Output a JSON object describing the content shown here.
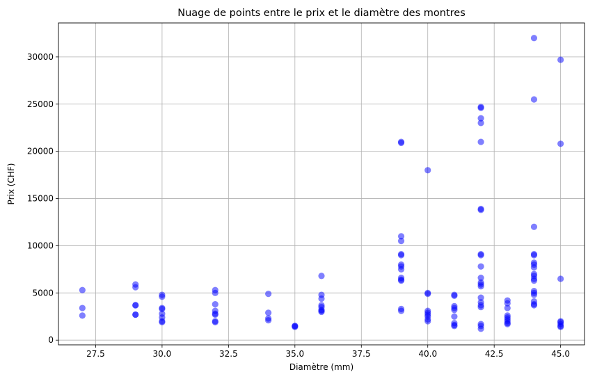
{
  "chart_data": {
    "type": "scatter",
    "title": "Nuage de points entre le prix et le diamètre des montres",
    "xlabel": "Diamètre (mm)",
    "ylabel": "Prix (CHF)",
    "xlim": [
      26.1,
      45.9
    ],
    "ylim": [
      -500,
      33600
    ],
    "xticks": [
      27.5,
      30.0,
      32.5,
      35.0,
      37.5,
      40.0,
      42.5,
      45.0
    ],
    "xtick_labels": [
      "27.5",
      "30.0",
      "32.5",
      "35.0",
      "37.5",
      "40.0",
      "42.5",
      "45.0"
    ],
    "yticks": [
      0,
      5000,
      10000,
      15000,
      20000,
      25000,
      30000
    ],
    "ytick_labels": [
      "0",
      "5000",
      "10000",
      "15000",
      "20000",
      "25000",
      "30000"
    ],
    "grid": true,
    "marker_color": "#0000ff",
    "marker_alpha": 0.5,
    "points": [
      {
        "x": 27,
        "y": 5300
      },
      {
        "x": 27,
        "y": 3400
      },
      {
        "x": 27,
        "y": 2600
      },
      {
        "x": 29,
        "y": 5900
      },
      {
        "x": 29,
        "y": 5600
      },
      {
        "x": 29,
        "y": 3700
      },
      {
        "x": 29,
        "y": 3700
      },
      {
        "x": 29,
        "y": 2700
      },
      {
        "x": 29,
        "y": 2700
      },
      {
        "x": 30,
        "y": 4800
      },
      {
        "x": 30,
        "y": 4600
      },
      {
        "x": 30,
        "y": 3400
      },
      {
        "x": 30,
        "y": 3300
      },
      {
        "x": 30,
        "y": 2800
      },
      {
        "x": 30,
        "y": 2400
      },
      {
        "x": 30,
        "y": 2000
      },
      {
        "x": 30,
        "y": 1900
      },
      {
        "x": 32,
        "y": 5300
      },
      {
        "x": 32,
        "y": 5000
      },
      {
        "x": 32,
        "y": 3800
      },
      {
        "x": 32,
        "y": 3100
      },
      {
        "x": 32,
        "y": 2800
      },
      {
        "x": 32,
        "y": 2700
      },
      {
        "x": 32,
        "y": 2000
      },
      {
        "x": 32,
        "y": 1900
      },
      {
        "x": 34,
        "y": 4900
      },
      {
        "x": 34,
        "y": 2900
      },
      {
        "x": 34,
        "y": 2300
      },
      {
        "x": 34,
        "y": 2100
      },
      {
        "x": 35,
        "y": 1500
      },
      {
        "x": 35,
        "y": 1500
      },
      {
        "x": 35,
        "y": 1400
      },
      {
        "x": 36,
        "y": 6800
      },
      {
        "x": 36,
        "y": 4800
      },
      {
        "x": 36,
        "y": 4400
      },
      {
        "x": 36,
        "y": 3700
      },
      {
        "x": 36,
        "y": 3500
      },
      {
        "x": 36,
        "y": 3200
      },
      {
        "x": 36,
        "y": 3100
      },
      {
        "x": 36,
        "y": 3000
      },
      {
        "x": 39,
        "y": 21000
      },
      {
        "x": 39,
        "y": 20900
      },
      {
        "x": 39,
        "y": 11000
      },
      {
        "x": 39,
        "y": 10500
      },
      {
        "x": 39,
        "y": 9100
      },
      {
        "x": 39,
        "y": 9000
      },
      {
        "x": 39,
        "y": 8000
      },
      {
        "x": 39,
        "y": 7800
      },
      {
        "x": 39,
        "y": 7500
      },
      {
        "x": 39,
        "y": 6600
      },
      {
        "x": 39,
        "y": 6400
      },
      {
        "x": 39,
        "y": 6300
      },
      {
        "x": 39,
        "y": 3300
      },
      {
        "x": 39,
        "y": 3100
      },
      {
        "x": 40,
        "y": 18000
      },
      {
        "x": 40,
        "y": 5000
      },
      {
        "x": 40,
        "y": 4900
      },
      {
        "x": 40,
        "y": 3100
      },
      {
        "x": 40,
        "y": 2900
      },
      {
        "x": 40,
        "y": 2700
      },
      {
        "x": 40,
        "y": 2500
      },
      {
        "x": 40,
        "y": 2200
      },
      {
        "x": 40,
        "y": 2000
      },
      {
        "x": 41,
        "y": 4800
      },
      {
        "x": 41,
        "y": 4700
      },
      {
        "x": 41,
        "y": 3600
      },
      {
        "x": 41,
        "y": 3400
      },
      {
        "x": 41,
        "y": 3200
      },
      {
        "x": 41,
        "y": 2500
      },
      {
        "x": 41,
        "y": 1800
      },
      {
        "x": 41,
        "y": 1600
      },
      {
        "x": 41,
        "y": 1500
      },
      {
        "x": 42,
        "y": 24700
      },
      {
        "x": 42,
        "y": 24600
      },
      {
        "x": 42,
        "y": 23500
      },
      {
        "x": 42,
        "y": 23000
      },
      {
        "x": 42,
        "y": 21000
      },
      {
        "x": 42,
        "y": 13900
      },
      {
        "x": 42,
        "y": 13800
      },
      {
        "x": 42,
        "y": 9100
      },
      {
        "x": 42,
        "y": 9000
      },
      {
        "x": 42,
        "y": 7800
      },
      {
        "x": 42,
        "y": 6600
      },
      {
        "x": 42,
        "y": 6100
      },
      {
        "x": 42,
        "y": 5900
      },
      {
        "x": 42,
        "y": 5700
      },
      {
        "x": 42,
        "y": 4500
      },
      {
        "x": 42,
        "y": 4000
      },
      {
        "x": 42,
        "y": 3700
      },
      {
        "x": 42,
        "y": 3500
      },
      {
        "x": 42,
        "y": 1700
      },
      {
        "x": 42,
        "y": 1500
      },
      {
        "x": 42,
        "y": 1200
      },
      {
        "x": 43,
        "y": 4200
      },
      {
        "x": 43,
        "y": 3900
      },
      {
        "x": 43,
        "y": 3400
      },
      {
        "x": 43,
        "y": 2600
      },
      {
        "x": 43,
        "y": 2400
      },
      {
        "x": 43,
        "y": 2200
      },
      {
        "x": 43,
        "y": 2000
      },
      {
        "x": 43,
        "y": 1800
      },
      {
        "x": 43,
        "y": 1700
      },
      {
        "x": 44,
        "y": 32000
      },
      {
        "x": 44,
        "y": 25500
      },
      {
        "x": 44,
        "y": 12000
      },
      {
        "x": 44,
        "y": 9100
      },
      {
        "x": 44,
        "y": 9000
      },
      {
        "x": 44,
        "y": 8200
      },
      {
        "x": 44,
        "y": 8000
      },
      {
        "x": 44,
        "y": 7700
      },
      {
        "x": 44,
        "y": 7000
      },
      {
        "x": 44,
        "y": 6800
      },
      {
        "x": 44,
        "y": 6500
      },
      {
        "x": 44,
        "y": 6300
      },
      {
        "x": 44,
        "y": 5200
      },
      {
        "x": 44,
        "y": 5000
      },
      {
        "x": 44,
        "y": 4800
      },
      {
        "x": 44,
        "y": 4100
      },
      {
        "x": 44,
        "y": 3800
      },
      {
        "x": 44,
        "y": 3700
      },
      {
        "x": 45,
        "y": 29700
      },
      {
        "x": 45,
        "y": 20800
      },
      {
        "x": 45,
        "y": 6500
      },
      {
        "x": 45,
        "y": 2000
      },
      {
        "x": 45,
        "y": 1900
      },
      {
        "x": 45,
        "y": 1700
      },
      {
        "x": 45,
        "y": 1500
      },
      {
        "x": 45,
        "y": 1400
      }
    ]
  }
}
